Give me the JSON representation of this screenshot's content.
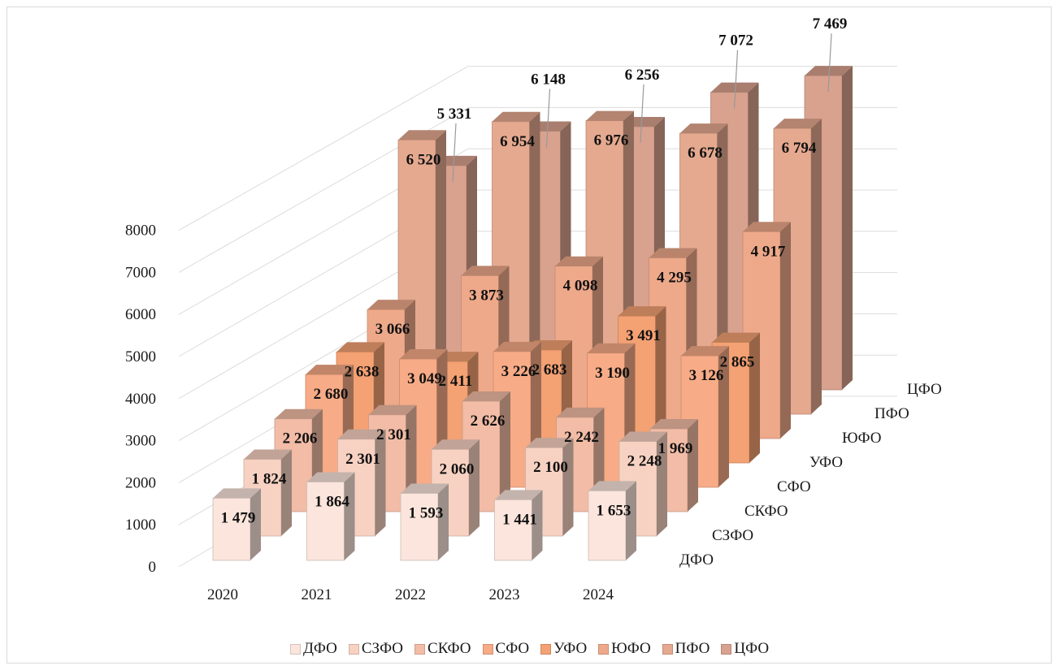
{
  "chart_data": {
    "type": "bar",
    "variant": "3d-clustered-depth",
    "categories": [
      "2020",
      "2021",
      "2022",
      "2023",
      "2024"
    ],
    "series": [
      {
        "name": "ДФО",
        "values": [
          1479,
          1864,
          1593,
          1441,
          1653
        ],
        "labels": [
          "1 479",
          "1 864",
          "1 593",
          "1 441",
          "1 653"
        ],
        "color": "#fbe5dc"
      },
      {
        "name": "СЗФО",
        "values": [
          1824,
          2301,
          2060,
          2100,
          2248
        ],
        "labels": [
          "1 824",
          "2 301",
          "2 060",
          "2 100",
          "2 248"
        ],
        "color": "#f7d2c2"
      },
      {
        "name": "СКФО",
        "values": [
          2206,
          2301,
          2626,
          2242,
          1969
        ],
        "labels": [
          "2 206",
          "2 301",
          "2 626",
          "2 242",
          "1 969"
        ],
        "color": "#f2bca6"
      },
      {
        "name": "СФО",
        "values": [
          2680,
          3049,
          3226,
          3190,
          3126
        ],
        "labels": [
          "2 680",
          "3 049",
          "3 226",
          "3 190",
          "3 126"
        ],
        "color": "#f7ab86"
      },
      {
        "name": "УФО",
        "values": [
          2638,
          2411,
          2683,
          3491,
          2865
        ],
        "labels": [
          "2 638",
          "2 411",
          "2 683",
          "3 491",
          "2 865"
        ],
        "color": "#f4a173"
      },
      {
        "name": "ЮФО",
        "values": [
          3066,
          3873,
          4098,
          4295,
          4917
        ],
        "labels": [
          "3 066",
          "3 873",
          "4 098",
          "4 295",
          "4 917"
        ],
        "color": "#eea98a"
      },
      {
        "name": "ПФО",
        "values": [
          6520,
          6954,
          6976,
          6678,
          6794
        ],
        "labels": [
          "6 520",
          "6 954",
          "6 976",
          "6 678",
          "6 794"
        ],
        "color": "#e5a98f"
      },
      {
        "name": "ЦФО",
        "values": [
          5331,
          6148,
          6256,
          7072,
          7469
        ],
        "labels": [
          "5 331",
          "6 148",
          "6 256",
          "7 072",
          "7 469"
        ],
        "color": "#d9a28e"
      }
    ],
    "yticks": [
      "0",
      "1000",
      "2000",
      "3000",
      "4000",
      "5000",
      "6000",
      "7000",
      "8000"
    ],
    "ylim": [
      0,
      8000
    ],
    "title": "",
    "xlabel": "",
    "ylabel": "",
    "grid": true,
    "legend": "bottom"
  }
}
